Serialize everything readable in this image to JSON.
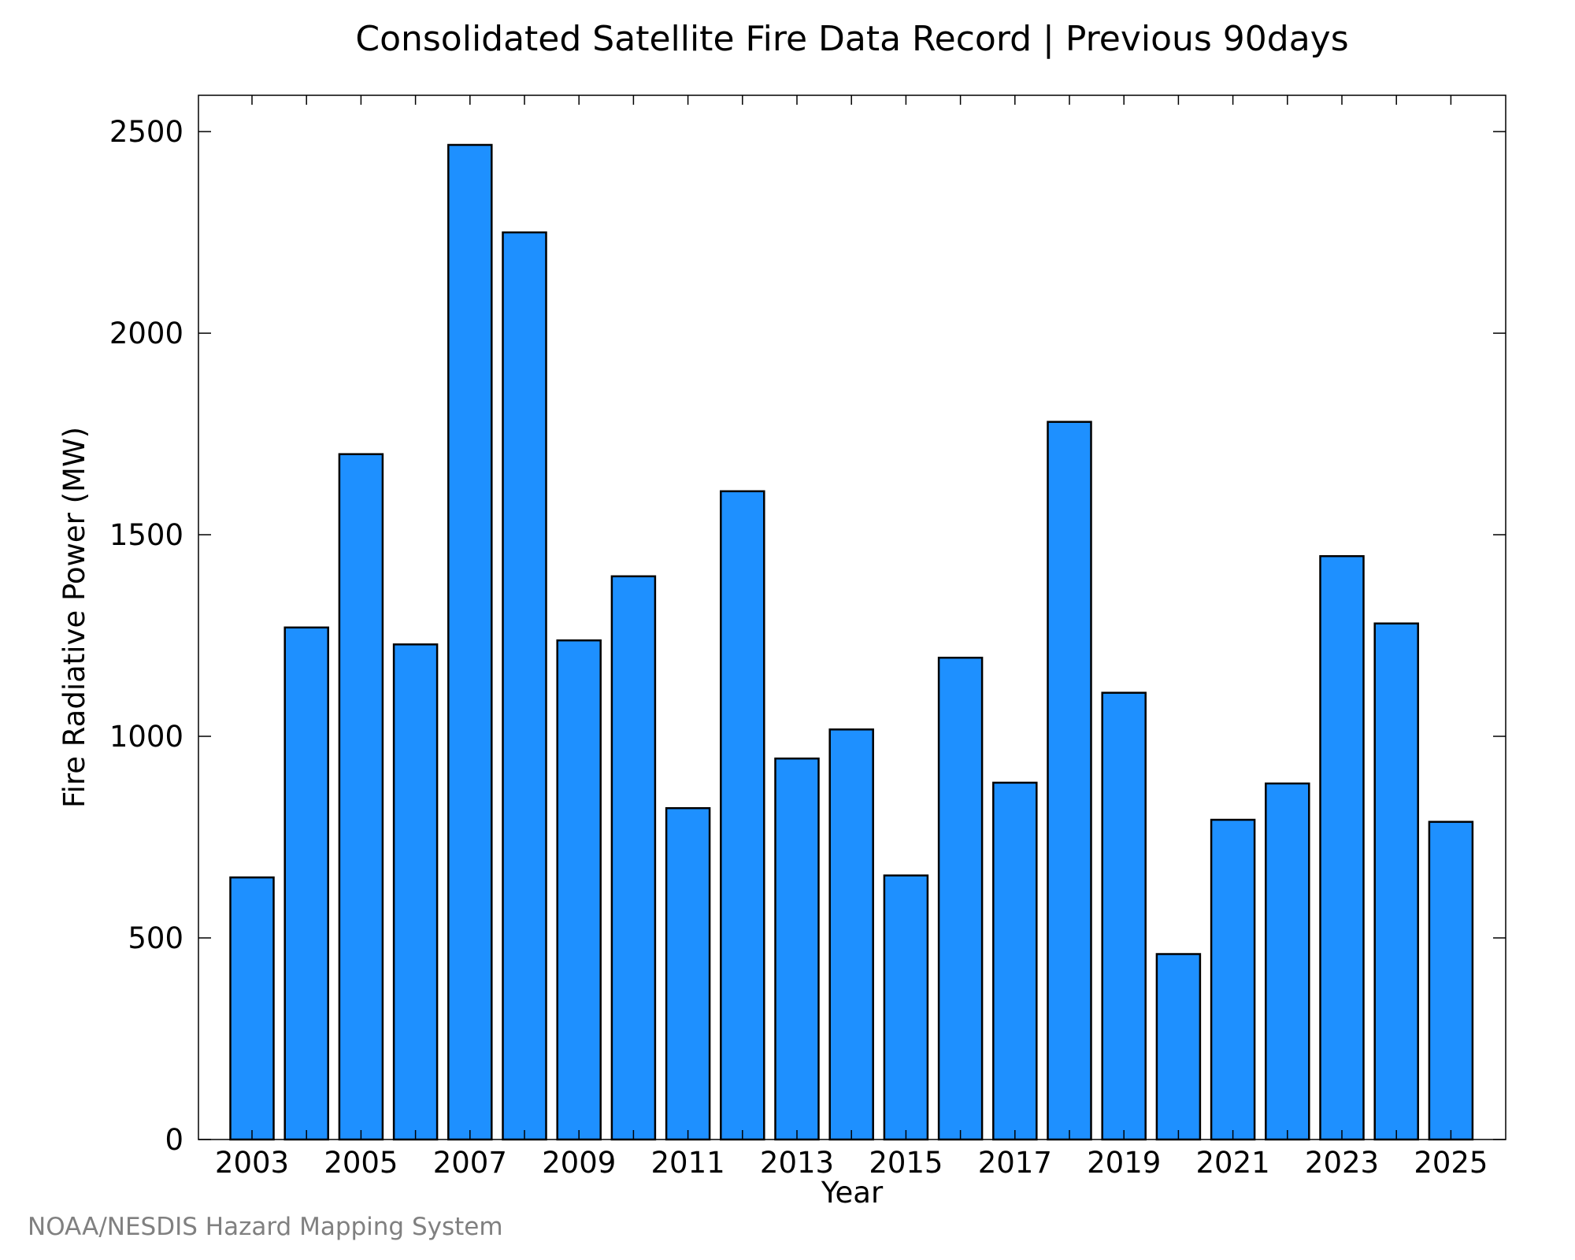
{
  "chart_data": {
    "type": "bar",
    "title": "Consolidated Satellite Fire Data Record | Previous 90days",
    "xlabel": "Year",
    "ylabel": "Fire Radiative Power (MW)",
    "categories": [
      "2003",
      "2004",
      "2005",
      "2006",
      "2007",
      "2008",
      "2009",
      "2010",
      "2011",
      "2012",
      "2013",
      "2014",
      "2015",
      "2016",
      "2017",
      "2018",
      "2019",
      "2020",
      "2021",
      "2022",
      "2023",
      "2024",
      "2025"
    ],
    "values": [
      650,
      1270,
      1700,
      1228,
      2467,
      2250,
      1238,
      1397,
      822,
      1608,
      945,
      1017,
      655,
      1195,
      885,
      1780,
      1108,
      460,
      793,
      883,
      1447,
      1280,
      788
    ],
    "xticks": [
      "2003",
      "2005",
      "2007",
      "2009",
      "2011",
      "2013",
      "2015",
      "2017",
      "2019",
      "2021",
      "2023",
      "2025"
    ],
    "yticks": [
      0,
      500,
      1000,
      1500,
      2000,
      2500
    ],
    "ylim": [
      0,
      2590
    ],
    "bar_color": "#1e90ff",
    "grid": false
  },
  "footer": {
    "credit": "NOAA/NESDIS Hazard Mapping System"
  }
}
